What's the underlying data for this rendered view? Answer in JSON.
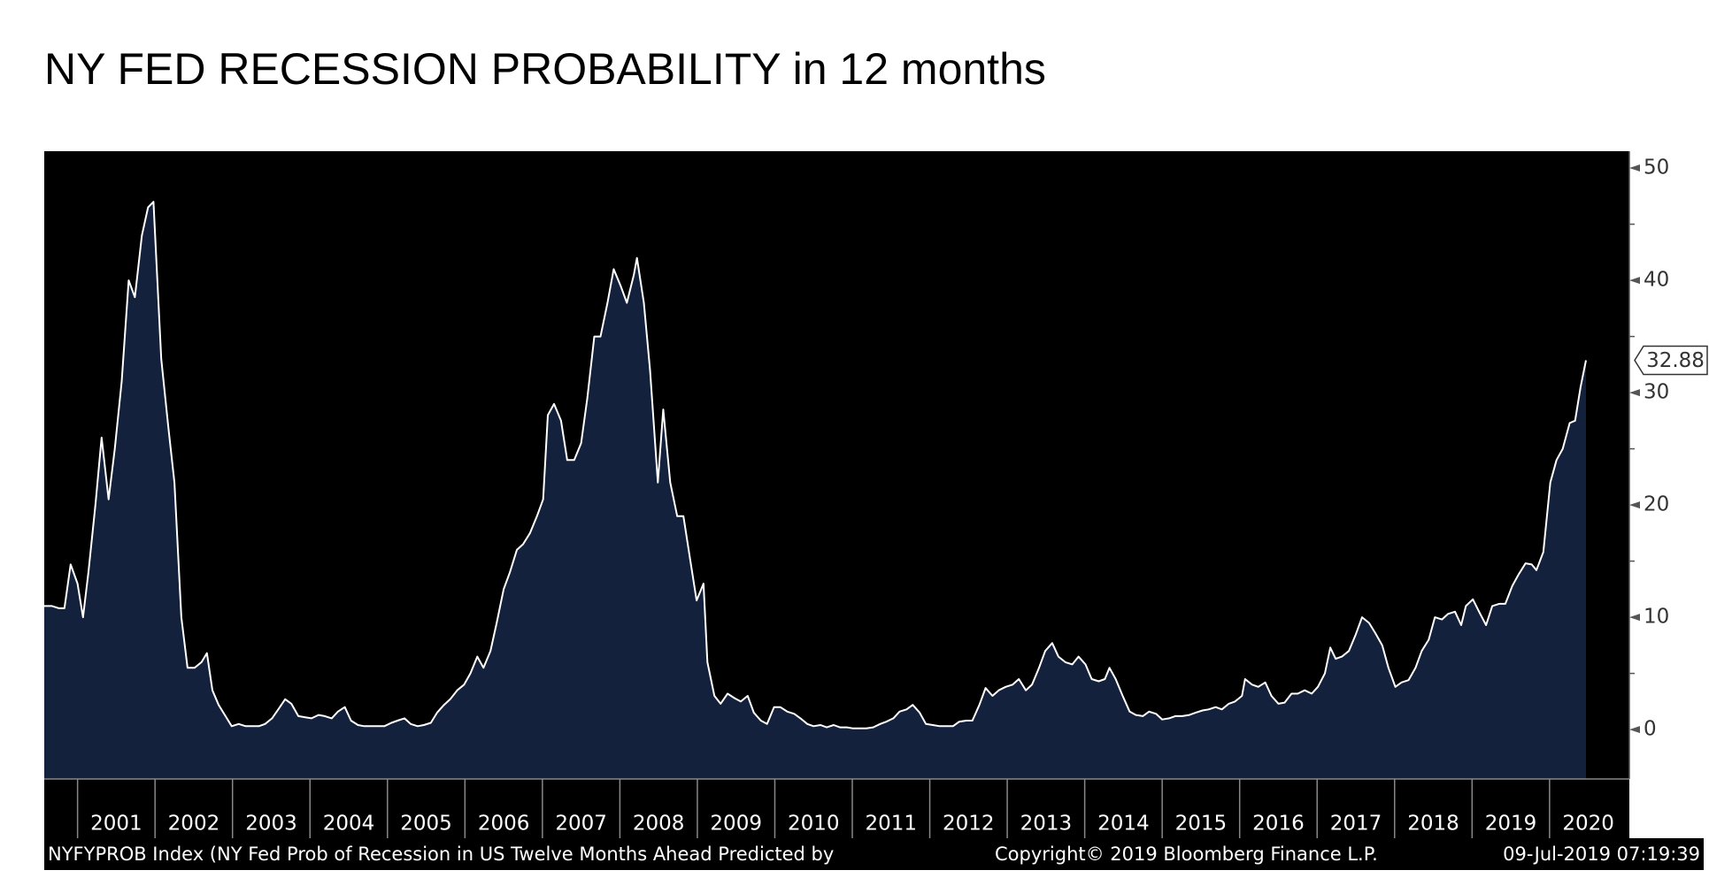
{
  "chart_data": {
    "type": "area",
    "title": "NY FED RECESSION PROBABILITY in 12 months",
    "footer_left": "NYFYPROB Index (NY Fed Prob of Recession in US Twelve Months Ahead Predicted by",
    "footer_center": "Copyright© 2019 Bloomberg Finance L.P.",
    "footer_right": "09-Jul-2019 07:19:39",
    "line_color": "#ffffff",
    "fill_color": "#14213d",
    "background": "#000000",
    "xlim": [
      2000.57,
      2021.03
    ],
    "ylim": [
      -4.4,
      51.5
    ],
    "yticks": [
      0,
      10,
      20,
      30,
      40,
      50
    ],
    "yticks_minor": [
      5,
      15,
      25,
      35,
      45
    ],
    "xticks": [
      {
        "value": 2001,
        "label": "2001"
      },
      {
        "value": 2002,
        "label": "2002"
      },
      {
        "value": 2003,
        "label": "2003"
      },
      {
        "value": 2004,
        "label": "2004"
      },
      {
        "value": 2005,
        "label": "2005"
      },
      {
        "value": 2006,
        "label": "2006"
      },
      {
        "value": 2007,
        "label": "2007"
      },
      {
        "value": 2008,
        "label": "2008"
      },
      {
        "value": 2009,
        "label": "2009"
      },
      {
        "value": 2010,
        "label": "2010"
      },
      {
        "value": 2011,
        "label": "2011"
      },
      {
        "value": 2012,
        "label": "2012"
      },
      {
        "value": 2013,
        "label": "2013"
      },
      {
        "value": 2014,
        "label": "2014"
      },
      {
        "value": 2015,
        "label": "2015"
      },
      {
        "value": 2016,
        "label": "2016"
      },
      {
        "value": 2017,
        "label": "2017"
      },
      {
        "value": 2018,
        "label": "2018"
      },
      {
        "value": 2019,
        "label": "2019"
      },
      {
        "value": 2020,
        "label": "2020"
      }
    ],
    "x": [
      2000.57,
      2000.67,
      2000.76,
      2000.83,
      2000.91,
      2001.0,
      2001.07,
      2001.14,
      2001.23,
      2001.31,
      2001.4,
      2001.48,
      2001.57,
      2001.66,
      2001.74,
      2001.83,
      2001.91,
      2001.98,
      2002.08,
      2002.17,
      2002.25,
      2002.34,
      2002.42,
      2002.51,
      2002.6,
      2002.67,
      2002.74,
      2002.82,
      2002.91,
      2002.99,
      2003.08,
      2003.17,
      2003.25,
      2003.34,
      2003.42,
      2003.51,
      2003.59,
      2003.68,
      2003.76,
      2003.85,
      2003.93,
      2004.02,
      2004.11,
      2004.19,
      2004.28,
      2004.36,
      2004.45,
      2004.53,
      2004.62,
      2004.7,
      2004.79,
      2004.87,
      2004.96,
      2005.05,
      2005.13,
      2005.22,
      2005.3,
      2005.39,
      2005.47,
      2005.56,
      2005.64,
      2005.73,
      2005.81,
      2005.9,
      2005.99,
      2006.07,
      2006.16,
      2006.24,
      2006.33,
      2006.41,
      2006.5,
      2006.58,
      2006.67,
      2006.75,
      2006.84,
      2006.93,
      2007.01,
      2007.07,
      2007.15,
      2007.24,
      2007.32,
      2007.41,
      2007.5,
      2007.58,
      2007.67,
      2007.75,
      2007.84,
      2007.92,
      2008.01,
      2008.09,
      2008.18,
      2008.22,
      2008.31,
      2008.39,
      2008.49,
      2008.56,
      2008.65,
      2008.74,
      2008.82,
      2008.91,
      2008.99,
      2009.08,
      2009.13,
      2009.22,
      2009.3,
      2009.39,
      2009.48,
      2009.56,
      2009.65,
      2009.73,
      2009.82,
      2009.9,
      2009.99,
      2010.07,
      2010.16,
      2010.25,
      2010.33,
      2010.42,
      2010.5,
      2010.59,
      2010.67,
      2010.76,
      2010.84,
      2010.93,
      2011.01,
      2011.1,
      2011.18,
      2011.27,
      2011.36,
      2011.44,
      2011.53,
      2011.61,
      2011.7,
      2011.78,
      2011.87,
      2011.95,
      2012.04,
      2012.13,
      2012.21,
      2012.3,
      2012.38,
      2012.47,
      2012.55,
      2012.64,
      2012.72,
      2012.81,
      2012.89,
      2012.98,
      2013.07,
      2013.15,
      2013.24,
      2013.32,
      2013.41,
      2013.49,
      2013.58,
      2013.66,
      2013.75,
      2013.84,
      2013.92,
      2014.01,
      2014.09,
      2014.18,
      2014.26,
      2014.32,
      2014.4,
      2014.49,
      2014.58,
      2014.66,
      2014.75,
      2014.83,
      2014.92,
      2015.0,
      2015.09,
      2015.17,
      2015.26,
      2015.35,
      2015.43,
      2015.52,
      2015.6,
      2015.69,
      2015.77,
      2015.86,
      2015.94,
      2016.03,
      2016.07,
      2016.16,
      2016.24,
      2016.33,
      2016.41,
      2016.5,
      2016.58,
      2016.67,
      2016.75,
      2016.84,
      2016.93,
      2017.01,
      2017.1,
      2017.17,
      2017.24,
      2017.32,
      2017.41,
      2017.5,
      2017.58,
      2017.67,
      2017.75,
      2017.84,
      2017.92,
      2018.01,
      2018.09,
      2018.18,
      2018.27,
      2018.35,
      2018.44,
      2018.52,
      2018.61,
      2018.69,
      2018.78,
      2018.86,
      2018.92,
      2019.01,
      2019.09,
      2019.18,
      2019.26,
      2019.35,
      2019.43,
      2019.52,
      2019.6,
      2019.69,
      2019.77,
      2019.83,
      2019.92,
      2020.01,
      2020.09,
      2020.17,
      2020.26,
      2020.33,
      2020.4,
      2020.47
    ],
    "values": [
      11,
      11,
      10.8,
      10.8,
      14.7,
      13,
      10,
      14,
      20,
      26,
      20.5,
      25,
      31,
      40,
      38.5,
      44,
      46.5,
      47,
      33,
      27,
      22,
      10,
      5.5,
      5.5,
      6,
      6.8,
      3.5,
      2.2,
      1.2,
      0.3,
      0.5,
      0.3,
      0.3,
      0.3,
      0.5,
      1,
      1.8,
      2.7,
      2.3,
      1.2,
      1.1,
      1,
      1.3,
      1.2,
      1,
      1.6,
      2,
      0.8,
      0.4,
      0.3,
      0.3,
      0.3,
      0.3,
      0.6,
      0.8,
      1,
      0.5,
      0.3,
      0.4,
      0.6,
      1.5,
      2.2,
      2.7,
      3.5,
      4,
      5,
      6.5,
      5.5,
      7,
      9.5,
      12.5,
      14,
      16,
      16.5,
      17.5,
      19,
      20.5,
      28,
      29,
      27.5,
      24,
      24,
      25.5,
      29.5,
      35,
      35,
      38,
      41,
      39.5,
      38,
      40.5,
      42,
      38,
      32,
      22,
      28.5,
      22,
      19,
      19,
      15,
      11.5,
      13,
      6,
      3,
      2.3,
      3.2,
      2.8,
      2.5,
      3,
      1.5,
      0.8,
      0.5,
      2,
      2,
      1.6,
      1.4,
      1,
      0.5,
      0.3,
      0.4,
      0.2,
      0.4,
      0.2,
      0.2,
      0.1,
      0.1,
      0.1,
      0.2,
      0.5,
      0.7,
      1,
      1.6,
      1.8,
      2.2,
      1.5,
      0.5,
      0.4,
      0.3,
      0.3,
      0.3,
      0.7,
      0.8,
      0.8,
      2.2,
      3.7,
      3,
      3.5,
      3.8,
      4,
      4.5,
      3.5,
      4,
      5.5,
      7,
      7.7,
      6.5,
      6,
      5.8,
      6.5,
      5.8,
      4.5,
      4.3,
      4.5,
      5.5,
      4.5,
      3,
      1.6,
      1.3,
      1.2,
      1.6,
      1.4,
      0.9,
      1,
      1.2,
      1.2,
      1.3,
      1.5,
      1.7,
      1.8,
      2,
      1.8,
      2.3,
      2.5,
      3,
      4.5,
      4,
      3.8,
      4.2,
      3,
      2.3,
      2.4,
      3.2,
      3.2,
      3.5,
      3.2,
      3.8,
      5,
      7.3,
      6.3,
      6.5,
      7,
      8.5,
      10,
      9.5,
      8.6,
      7.5,
      5.5,
      3.8,
      4.2,
      4.4,
      5.5,
      7,
      8,
      10,
      9.8,
      10.3,
      10.5,
      9.3,
      11,
      11.6,
      10.5,
      9.3,
      11,
      11.2,
      11.2,
      12.8,
      13.8,
      14.8,
      14.7,
      14.2,
      15.8,
      22,
      24,
      25,
      27.3,
      27.5,
      30.5,
      32.88
    ]
  }
}
